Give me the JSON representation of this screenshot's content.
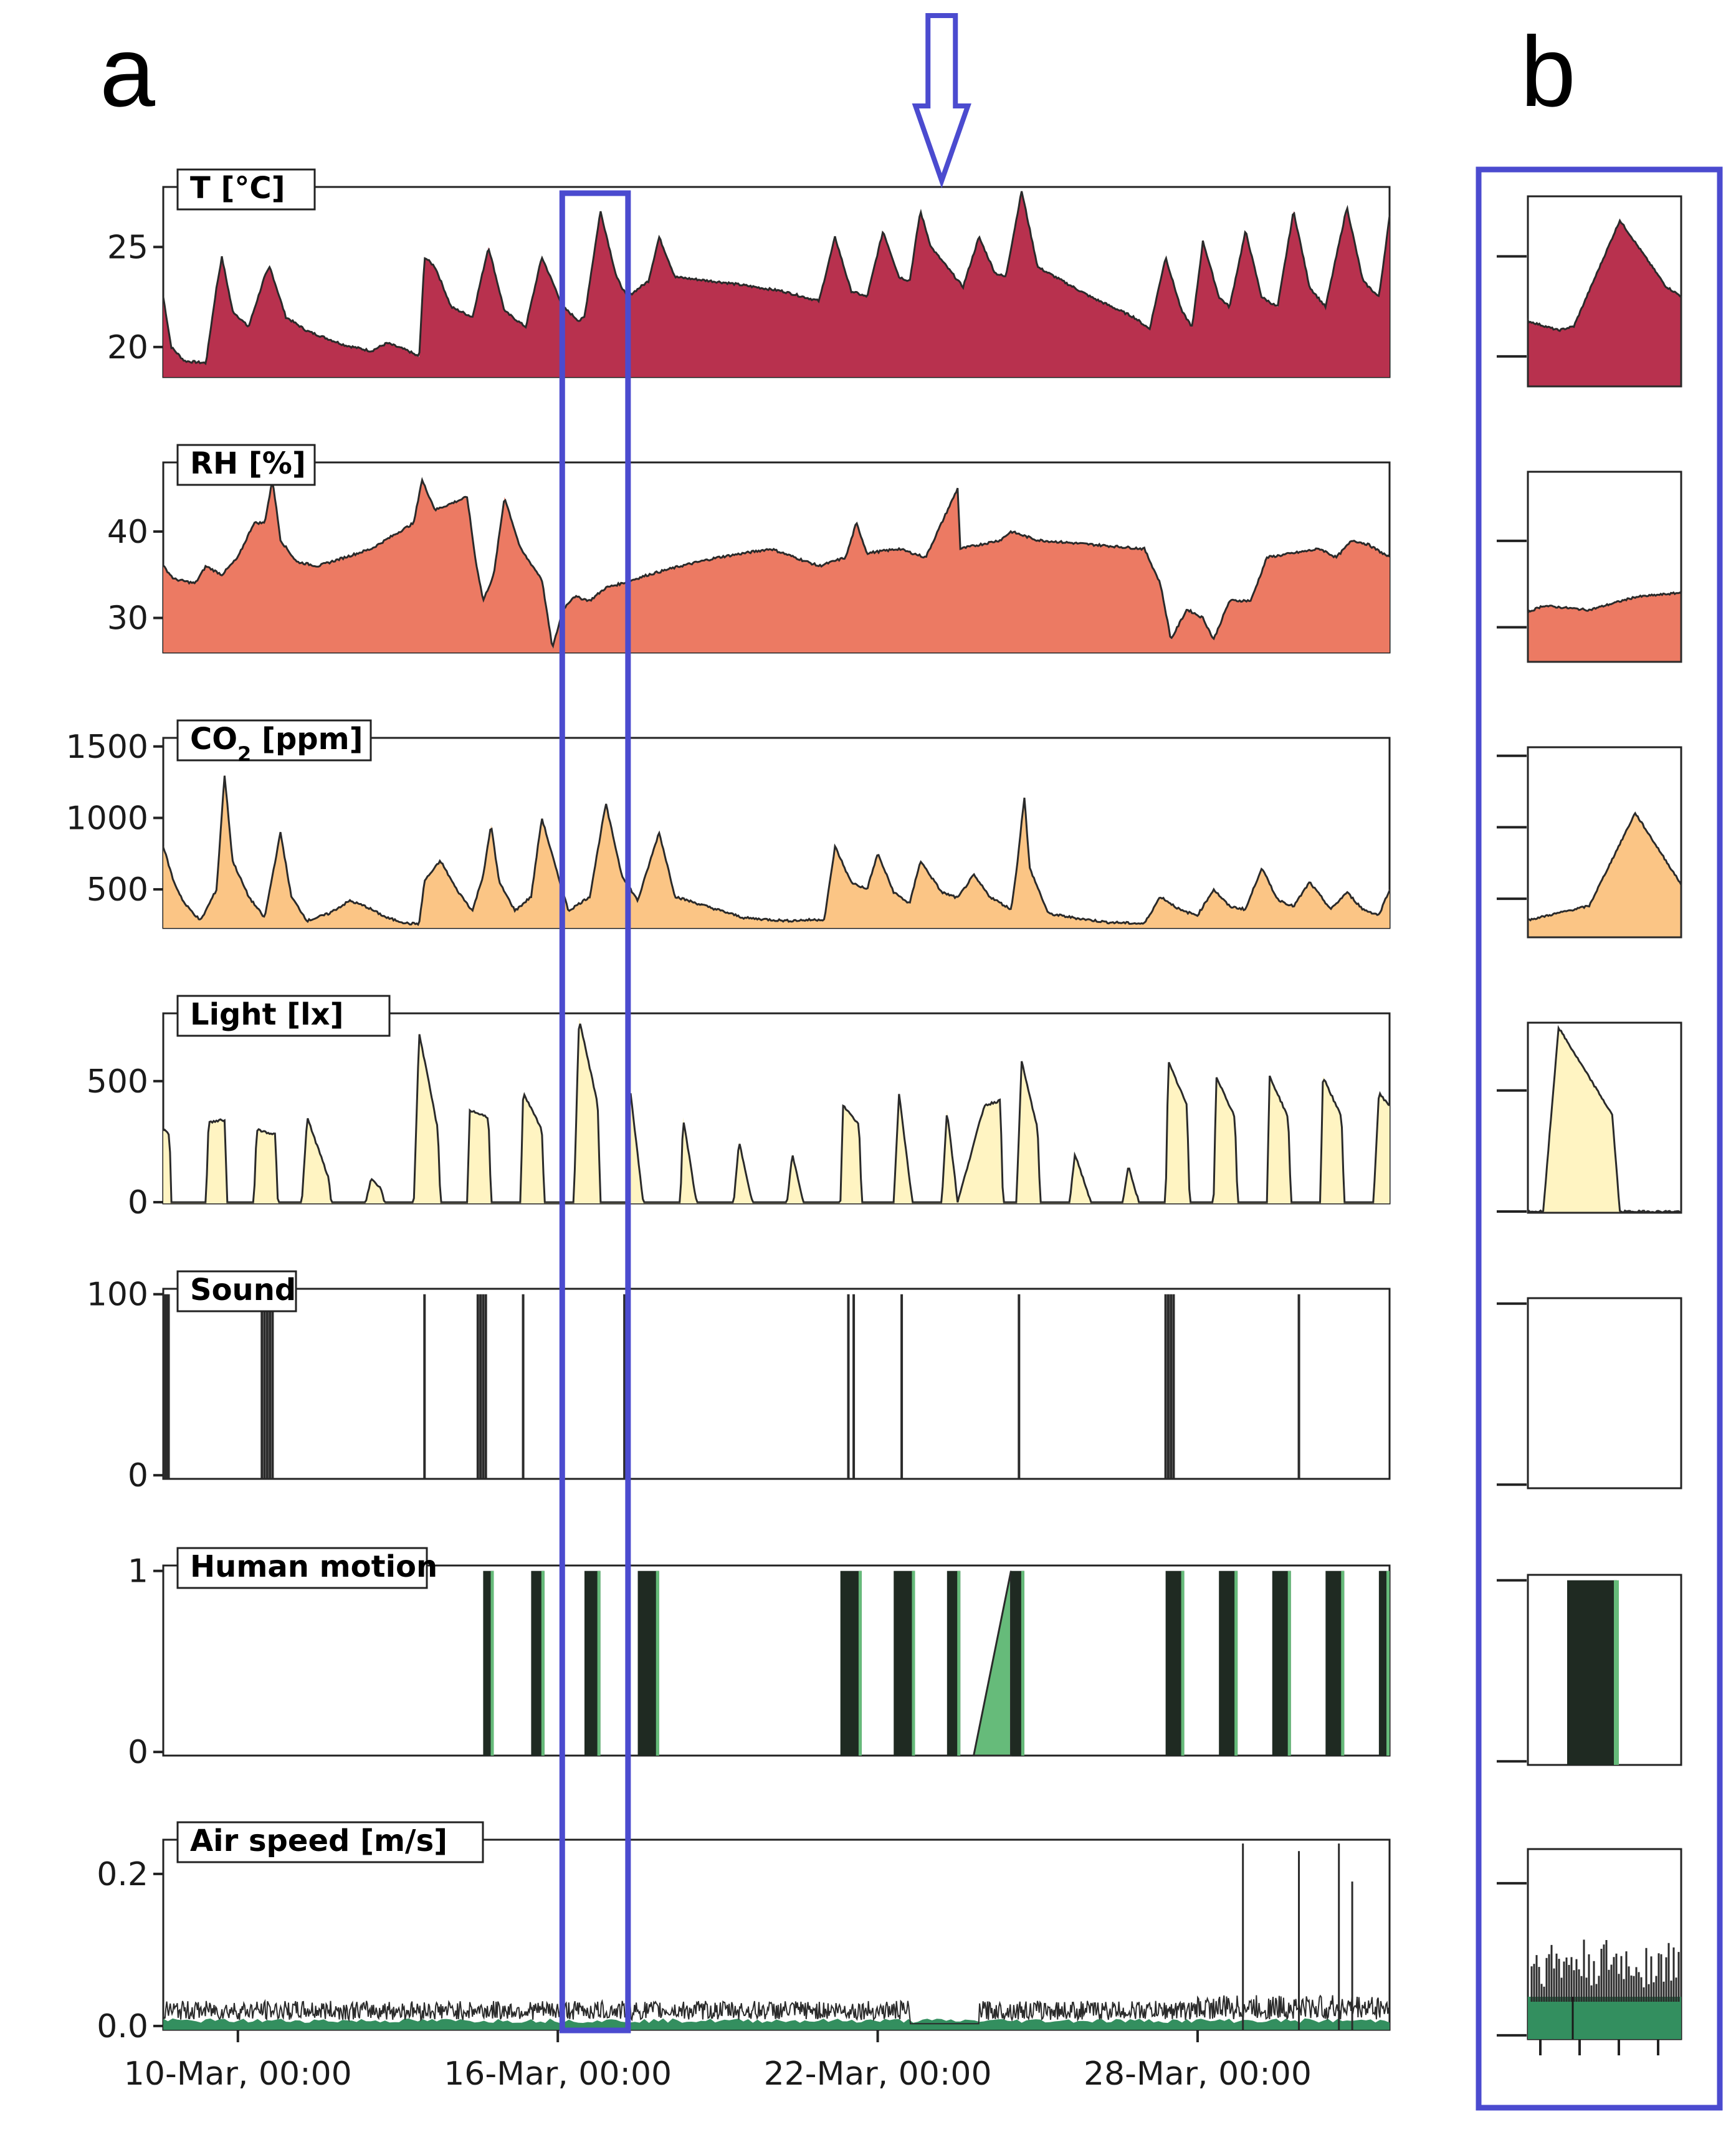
{
  "figure": {
    "panel_a_label": "a",
    "panel_b_label": "b",
    "highlight_color": "#4b4bcf",
    "x_ticks": [
      "10-Mar, 00:00",
      "16-Mar, 00:00",
      "22-Mar, 00:00",
      "28-Mar, 00:00"
    ],
    "x_range_days": [
      8.6,
      31.6
    ],
    "highlight_window_days": [
      16.2,
      17.2
    ],
    "arrow_at_day": 23.2
  },
  "chart_data": [
    {
      "type": "area",
      "id": "temp",
      "title": "T [°C]",
      "fill": "#b8314e",
      "ylim": [
        18.5,
        28
      ],
      "yticks": [
        20,
        25
      ],
      "points": [
        [
          8.6,
          22.5
        ],
        [
          8.75,
          20
        ],
        [
          9.0,
          19.3
        ],
        [
          9.4,
          19.2
        ],
        [
          9.6,
          23
        ],
        [
          9.7,
          24.5
        ],
        [
          9.9,
          21.8
        ],
        [
          10.2,
          21
        ],
        [
          10.5,
          23.5
        ],
        [
          10.6,
          24
        ],
        [
          10.9,
          21.5
        ],
        [
          11.3,
          20.8
        ],
        [
          11.6,
          20.5
        ],
        [
          12.0,
          20.1
        ],
        [
          12.5,
          19.8
        ],
        [
          12.8,
          20.2
        ],
        [
          13.2,
          19.8
        ],
        [
          13.4,
          19.5
        ],
        [
          13.5,
          24.5
        ],
        [
          13.7,
          24
        ],
        [
          14.0,
          22
        ],
        [
          14.4,
          21.5
        ],
        [
          14.7,
          25
        ],
        [
          15.0,
          21.8
        ],
        [
          15.4,
          21
        ],
        [
          15.7,
          24.5
        ],
        [
          16.1,
          22
        ],
        [
          16.4,
          21.3
        ],
        [
          16.5,
          21.5
        ],
        [
          16.8,
          26.8
        ],
        [
          17.1,
          23.5
        ],
        [
          17.3,
          22.5
        ],
        [
          17.7,
          23.3
        ],
        [
          17.9,
          25.5
        ],
        [
          18.2,
          23.5
        ],
        [
          19.2,
          23.2
        ],
        [
          20.2,
          22.8
        ],
        [
          20.9,
          22.3
        ],
        [
          21.2,
          25.5
        ],
        [
          21.5,
          22.8
        ],
        [
          21.8,
          22.5
        ],
        [
          22.1,
          25.8
        ],
        [
          22.4,
          23.5
        ],
        [
          22.6,
          23.3
        ],
        [
          22.8,
          26.8
        ],
        [
          23.0,
          25
        ],
        [
          23.6,
          23
        ],
        [
          23.9,
          25.5
        ],
        [
          24.2,
          23.7
        ],
        [
          24.4,
          23.5
        ],
        [
          24.7,
          27.8
        ],
        [
          25.0,
          24
        ],
        [
          26.0,
          22.5
        ],
        [
          26.8,
          21.5
        ],
        [
          27.1,
          20.9
        ],
        [
          27.4,
          24.5
        ],
        [
          27.7,
          21.8
        ],
        [
          27.9,
          21
        ],
        [
          28.1,
          25.3
        ],
        [
          28.4,
          22.5
        ],
        [
          28.6,
          22
        ],
        [
          28.9,
          25.8
        ],
        [
          29.2,
          22.5
        ],
        [
          29.5,
          22
        ],
        [
          29.8,
          26.8
        ],
        [
          30.1,
          23
        ],
        [
          30.4,
          22
        ],
        [
          30.8,
          27
        ],
        [
          31.1,
          23.3
        ],
        [
          31.4,
          22.5
        ],
        [
          31.6,
          26.5
        ]
      ]
    },
    {
      "type": "area",
      "id": "rh",
      "title": "RH [%]",
      "fill": "#ec7a63",
      "ylim": [
        26,
        48
      ],
      "yticks": [
        30,
        40
      ],
      "points": [
        [
          8.6,
          36
        ],
        [
          8.8,
          34.5
        ],
        [
          9.2,
          34
        ],
        [
          9.4,
          36
        ],
        [
          9.7,
          35
        ],
        [
          10.0,
          37
        ],
        [
          10.3,
          41
        ],
        [
          10.5,
          41
        ],
        [
          10.65,
          46
        ],
        [
          10.8,
          39
        ],
        [
          11.1,
          36.5
        ],
        [
          11.5,
          36
        ],
        [
          12.0,
          37
        ],
        [
          12.5,
          38
        ],
        [
          12.9,
          39.5
        ],
        [
          13.3,
          41
        ],
        [
          13.45,
          46
        ],
        [
          13.7,
          42.5
        ],
        [
          14.3,
          44
        ],
        [
          14.45,
          37
        ],
        [
          14.6,
          32
        ],
        [
          14.8,
          35
        ],
        [
          15.0,
          44
        ],
        [
          15.3,
          38
        ],
        [
          15.7,
          34.5
        ],
        [
          15.9,
          26.5
        ],
        [
          16.1,
          31
        ],
        [
          16.3,
          32.5
        ],
        [
          16.6,
          32
        ],
        [
          16.9,
          33.5
        ],
        [
          17.2,
          34
        ],
        [
          17.7,
          35
        ],
        [
          18.3,
          36
        ],
        [
          19.0,
          37
        ],
        [
          20.0,
          38
        ],
        [
          20.9,
          36
        ],
        [
          21.4,
          37
        ],
        [
          21.6,
          41
        ],
        [
          21.8,
          37.5
        ],
        [
          22.4,
          38
        ],
        [
          22.9,
          37
        ],
        [
          23.5,
          45
        ],
        [
          23.55,
          38
        ],
        [
          24.3,
          39
        ],
        [
          24.5,
          40
        ],
        [
          25.0,
          39
        ],
        [
          26.0,
          38.5
        ],
        [
          27.0,
          38
        ],
        [
          27.3,
          34
        ],
        [
          27.5,
          27.5
        ],
        [
          27.8,
          31
        ],
        [
          28.1,
          30
        ],
        [
          28.3,
          27.5
        ],
        [
          28.6,
          32
        ],
        [
          29.0,
          32
        ],
        [
          29.3,
          37
        ],
        [
          29.8,
          37.5
        ],
        [
          30.3,
          38
        ],
        [
          30.6,
          37
        ],
        [
          30.9,
          39
        ],
        [
          31.2,
          38.5
        ],
        [
          31.6,
          37
        ]
      ]
    },
    {
      "type": "area",
      "id": "co2",
      "title": "CO2 [ppm]",
      "fill": "#fbc585",
      "ylim": [
        230,
        1560
      ],
      "yticks": [
        500,
        1000,
        1500
      ],
      "points": [
        [
          8.6,
          800
        ],
        [
          8.8,
          550
        ],
        [
          9.0,
          400
        ],
        [
          9.3,
          280
        ],
        [
          9.6,
          500
        ],
        [
          9.75,
          1300
        ],
        [
          9.9,
          700
        ],
        [
          10.2,
          450
        ],
        [
          10.5,
          300
        ],
        [
          10.8,
          900
        ],
        [
          11.0,
          450
        ],
        [
          11.3,
          280
        ],
        [
          11.7,
          330
        ],
        [
          12.1,
          420
        ],
        [
          12.4,
          380
        ],
        [
          12.8,
          300
        ],
        [
          13.2,
          260
        ],
        [
          13.4,
          260
        ],
        [
          13.5,
          560
        ],
        [
          13.8,
          700
        ],
        [
          14.1,
          500
        ],
        [
          14.4,
          350
        ],
        [
          14.6,
          600
        ],
        [
          14.75,
          950
        ],
        [
          14.9,
          550
        ],
        [
          15.2,
          350
        ],
        [
          15.5,
          450
        ],
        [
          15.7,
          1000
        ],
        [
          16.0,
          600
        ],
        [
          16.2,
          350
        ],
        [
          16.6,
          450
        ],
        [
          16.9,
          1100
        ],
        [
          17.2,
          600
        ],
        [
          17.5,
          420
        ],
        [
          17.9,
          900
        ],
        [
          18.2,
          450
        ],
        [
          18.8,
          380
        ],
        [
          19.5,
          300
        ],
        [
          20.3,
          280
        ],
        [
          21.0,
          290
        ],
        [
          21.2,
          800
        ],
        [
          21.5,
          550
        ],
        [
          21.8,
          500
        ],
        [
          22.0,
          750
        ],
        [
          22.3,
          480
        ],
        [
          22.6,
          400
        ],
        [
          22.8,
          700
        ],
        [
          23.2,
          480
        ],
        [
          23.5,
          440
        ],
        [
          23.8,
          600
        ],
        [
          24.1,
          450
        ],
        [
          24.5,
          360
        ],
        [
          24.6,
          620
        ],
        [
          24.75,
          1150
        ],
        [
          24.85,
          650
        ],
        [
          25.2,
          330
        ],
        [
          25.7,
          300
        ],
        [
          26.3,
          270
        ],
        [
          27.0,
          260
        ],
        [
          27.3,
          450
        ],
        [
          27.7,
          350
        ],
        [
          28.0,
          320
        ],
        [
          28.3,
          500
        ],
        [
          28.6,
          380
        ],
        [
          28.9,
          360
        ],
        [
          29.2,
          650
        ],
        [
          29.5,
          430
        ],
        [
          29.8,
          380
        ],
        [
          30.1,
          550
        ],
        [
          30.5,
          360
        ],
        [
          30.8,
          480
        ],
        [
          31.1,
          360
        ],
        [
          31.4,
          320
        ],
        [
          31.6,
          500
        ]
      ]
    },
    {
      "type": "area",
      "id": "light",
      "title": "Light [lx]",
      "fill": "#fff4c2",
      "ylim": [
        -5,
        780
      ],
      "yticks": [
        0,
        500
      ],
      "points": [
        [
          8.6,
          300
        ],
        [
          8.72,
          280
        ],
        [
          8.75,
          0
        ],
        [
          9.4,
          0
        ],
        [
          9.45,
          330
        ],
        [
          9.75,
          340
        ],
        [
          9.8,
          0
        ],
        [
          10.3,
          0
        ],
        [
          10.35,
          300
        ],
        [
          10.7,
          280
        ],
        [
          10.75,
          0
        ],
        [
          11.2,
          0
        ],
        [
          11.3,
          350
        ],
        [
          11.7,
          100
        ],
        [
          11.75,
          0
        ],
        [
          12.4,
          0
        ],
        [
          12.5,
          100
        ],
        [
          12.7,
          50
        ],
        [
          12.75,
          0
        ],
        [
          13.3,
          0
        ],
        [
          13.4,
          700
        ],
        [
          13.75,
          300
        ],
        [
          13.8,
          0
        ],
        [
          14.3,
          0
        ],
        [
          14.35,
          380
        ],
        [
          14.7,
          350
        ],
        [
          14.75,
          0
        ],
        [
          15.3,
          0
        ],
        [
          15.35,
          450
        ],
        [
          15.7,
          300
        ],
        [
          15.75,
          0
        ],
        [
          16.3,
          0
        ],
        [
          16.4,
          760
        ],
        [
          16.75,
          400
        ],
        [
          16.8,
          0
        ],
        [
          17.3,
          0
        ],
        [
          17.35,
          480
        ],
        [
          17.6,
          0
        ],
        [
          18.3,
          0
        ],
        [
          18.35,
          350
        ],
        [
          18.6,
          0
        ],
        [
          19.3,
          0
        ],
        [
          19.4,
          250
        ],
        [
          19.65,
          0
        ],
        [
          20.3,
          0
        ],
        [
          20.4,
          200
        ],
        [
          20.6,
          0
        ],
        [
          21.3,
          0
        ],
        [
          21.35,
          400
        ],
        [
          21.65,
          320
        ],
        [
          21.7,
          0
        ],
        [
          22.3,
          0
        ],
        [
          22.4,
          450
        ],
        [
          22.65,
          0
        ],
        [
          23.2,
          0
        ],
        [
          23.3,
          380
        ],
        [
          23.5,
          0
        ],
        [
          24.0,
          400
        ],
        [
          24.3,
          420
        ],
        [
          24.35,
          0
        ],
        [
          24.6,
          0
        ],
        [
          24.7,
          580
        ],
        [
          25.0,
          300
        ],
        [
          25.05,
          0
        ],
        [
          25.6,
          0
        ],
        [
          25.7,
          200
        ],
        [
          26.0,
          0
        ],
        [
          26.6,
          0
        ],
        [
          26.7,
          150
        ],
        [
          26.9,
          0
        ],
        [
          27.4,
          0
        ],
        [
          27.45,
          580
        ],
        [
          27.8,
          400
        ],
        [
          27.85,
          0
        ],
        [
          28.3,
          0
        ],
        [
          28.35,
          520
        ],
        [
          28.7,
          350
        ],
        [
          28.75,
          0
        ],
        [
          29.3,
          0
        ],
        [
          29.35,
          520
        ],
        [
          29.7,
          350
        ],
        [
          29.75,
          0
        ],
        [
          30.3,
          0
        ],
        [
          30.35,
          520
        ],
        [
          30.7,
          350
        ],
        [
          30.75,
          0
        ],
        [
          31.3,
          0
        ],
        [
          31.4,
          450
        ],
        [
          31.6,
          400
        ]
      ]
    },
    {
      "type": "spikes",
      "id": "sound",
      "title": "Sound",
      "fill": "#2b2b2b",
      "ylim": [
        -2,
        103
      ],
      "yticks": [
        0,
        100
      ],
      "spikes_days": [
        8.62,
        8.66,
        8.7,
        10.45,
        10.5,
        10.55,
        10.6,
        10.65,
        13.5,
        14.5,
        14.55,
        14.6,
        14.65,
        15.35,
        17.25,
        17.3,
        21.45,
        21.55,
        22.45,
        24.65,
        27.4,
        27.45,
        27.5,
        27.55,
        29.9
      ]
    },
    {
      "type": "bars",
      "id": "motion",
      "title": "Human motion",
      "fill": "#66bb7a",
      "ylim": [
        -0.02,
        1.03
      ],
      "yticks": [
        0,
        1
      ],
      "blocks_days": [
        [
          14.6,
          14.8
        ],
        [
          15.5,
          15.75
        ],
        [
          16.5,
          16.8
        ],
        [
          17.5,
          17.9
        ],
        [
          21.3,
          21.7
        ],
        [
          22.3,
          22.7
        ],
        [
          23.3,
          23.55
        ],
        [
          24.5,
          24.75
        ],
        [
          27.4,
          27.75
        ],
        [
          28.4,
          28.75
        ],
        [
          29.4,
          29.75
        ],
        [
          30.4,
          30.75
        ],
        [
          31.4,
          31.6
        ]
      ],
      "ramp_days": [
        23.8,
        24.5
      ]
    },
    {
      "type": "noise",
      "id": "air",
      "title": "Air speed [m/s]",
      "fill": "#338f5f",
      "ylim": [
        -0.005,
        0.245
      ],
      "yticks": [
        0.0,
        0.2
      ],
      "base_level": 0.025,
      "peaks": [
        [
          28.85,
          0.24
        ],
        [
          29.9,
          0.23
        ],
        [
          30.65,
          0.24
        ],
        [
          30.9,
          0.19
        ]
      ]
    }
  ],
  "zoom_panels": {
    "note": "panel b: zoomed view of highlighted window; tick marks without labels",
    "x_tick_count": 4
  }
}
